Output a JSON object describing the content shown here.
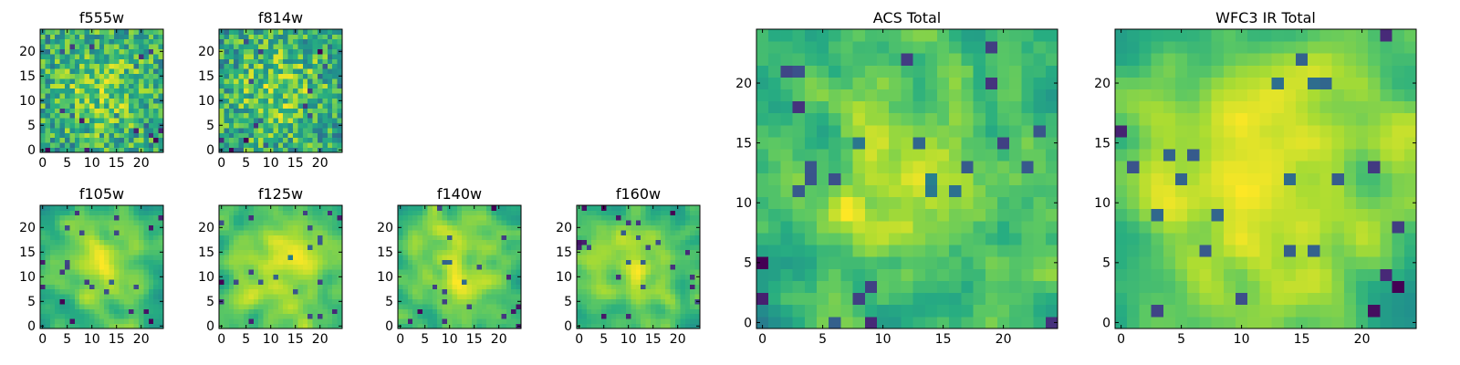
{
  "chart_data": [
    {
      "id": "f555w",
      "type": "heatmap",
      "title": "f555w",
      "nx": 25,
      "ny": 25,
      "seed": 555,
      "kind": "noisy",
      "xlim": [
        -0.5,
        24.5
      ],
      "ylim": [
        -0.5,
        24.5
      ],
      "xticks": [
        0,
        5,
        10,
        15,
        20
      ],
      "yticks": [
        0,
        5,
        10,
        15,
        20
      ],
      "xticklabels": [
        "0",
        "5",
        "10",
        "15",
        "20"
      ],
      "yticklabels": [
        "0",
        "5",
        "10",
        "15",
        "20"
      ],
      "colormap": "viridis",
      "grid": false
    },
    {
      "id": "f814w",
      "type": "heatmap",
      "title": "f814w",
      "nx": 25,
      "ny": 25,
      "seed": 814,
      "kind": "noisy",
      "xlim": [
        -0.5,
        24.5
      ],
      "ylim": [
        -0.5,
        24.5
      ],
      "xticks": [
        0,
        5,
        10,
        15,
        20
      ],
      "yticks": [
        0,
        5,
        10,
        15,
        20
      ],
      "xticklabels": [
        "0",
        "5",
        "10",
        "15",
        "20"
      ],
      "yticklabels": [
        "0",
        "5",
        "10",
        "15",
        "20"
      ],
      "colormap": "viridis",
      "grid": false
    },
    {
      "id": "f105w",
      "type": "heatmap",
      "title": "f105w",
      "nx": 25,
      "ny": 25,
      "seed": 105,
      "kind": "smooth",
      "xlim": [
        -0.5,
        24.5
      ],
      "ylim": [
        -0.5,
        24.5
      ],
      "xticks": [
        0,
        5,
        10,
        15,
        20
      ],
      "yticks": [
        0,
        5,
        10,
        15,
        20
      ],
      "xticklabels": [
        "0",
        "5",
        "10",
        "15",
        "20"
      ],
      "yticklabels": [
        "0",
        "5",
        "10",
        "15",
        "20"
      ],
      "colormap": "viridis",
      "grid": false
    },
    {
      "id": "f125w",
      "type": "heatmap",
      "title": "f125w",
      "nx": 25,
      "ny": 25,
      "seed": 125,
      "kind": "smooth",
      "xlim": [
        -0.5,
        24.5
      ],
      "ylim": [
        -0.5,
        24.5
      ],
      "xticks": [
        0,
        5,
        10,
        15,
        20
      ],
      "yticks": [
        0,
        5,
        10,
        15,
        20
      ],
      "xticklabels": [
        "0",
        "5",
        "10",
        "15",
        "20"
      ],
      "yticklabels": [
        "0",
        "5",
        "10",
        "15",
        "20"
      ],
      "colormap": "viridis",
      "grid": false
    },
    {
      "id": "f140w",
      "type": "heatmap",
      "title": "f140w",
      "nx": 25,
      "ny": 25,
      "seed": 140,
      "kind": "smooth",
      "xlim": [
        -0.5,
        24.5
      ],
      "ylim": [
        -0.5,
        24.5
      ],
      "xticks": [
        0,
        5,
        10,
        15,
        20
      ],
      "yticks": [
        0,
        5,
        10,
        15,
        20
      ],
      "xticklabels": [
        "0",
        "5",
        "10",
        "15",
        "20"
      ],
      "yticklabels": [
        "0",
        "5",
        "10",
        "15",
        "20"
      ],
      "colormap": "viridis",
      "grid": false
    },
    {
      "id": "f160w",
      "type": "heatmap",
      "title": "f160w",
      "nx": 25,
      "ny": 25,
      "seed": 160,
      "kind": "smooth",
      "xlim": [
        -0.5,
        24.5
      ],
      "ylim": [
        -0.5,
        24.5
      ],
      "xticks": [
        0,
        5,
        10,
        15,
        20
      ],
      "yticks": [
        0,
        5,
        10,
        15,
        20
      ],
      "xticklabels": [
        "0",
        "5",
        "10",
        "15",
        "20"
      ],
      "yticklabels": [
        "0",
        "5",
        "10",
        "15",
        "20"
      ],
      "colormap": "viridis",
      "grid": false
    },
    {
      "id": "acs-total",
      "type": "heatmap",
      "title": "ACS Total",
      "nx": 25,
      "ny": 25,
      "seed": 1001,
      "kind": "medium",
      "xlim": [
        -0.5,
        24.5
      ],
      "ylim": [
        -0.5,
        24.5
      ],
      "xticks": [
        0,
        5,
        10,
        15,
        20
      ],
      "yticks": [
        0,
        5,
        10,
        15,
        20
      ],
      "xticklabels": [
        "0",
        "5",
        "10",
        "15",
        "20"
      ],
      "yticklabels": [
        "0",
        "5",
        "10",
        "15",
        "20"
      ],
      "colormap": "viridis",
      "grid": false
    },
    {
      "id": "wfc3-ir-total",
      "type": "heatmap",
      "title": "WFC3 IR Total",
      "nx": 25,
      "ny": 25,
      "seed": 2002,
      "kind": "smooth",
      "xlim": [
        -0.5,
        24.5
      ],
      "ylim": [
        -0.5,
        24.5
      ],
      "xticks": [
        0,
        5,
        10,
        15,
        20
      ],
      "yticks": [
        0,
        5,
        10,
        15,
        20
      ],
      "xticklabels": [
        "0",
        "5",
        "10",
        "15",
        "20"
      ],
      "yticklabels": [
        "0",
        "5",
        "10",
        "15",
        "20"
      ],
      "colormap": "viridis",
      "grid": false
    }
  ]
}
